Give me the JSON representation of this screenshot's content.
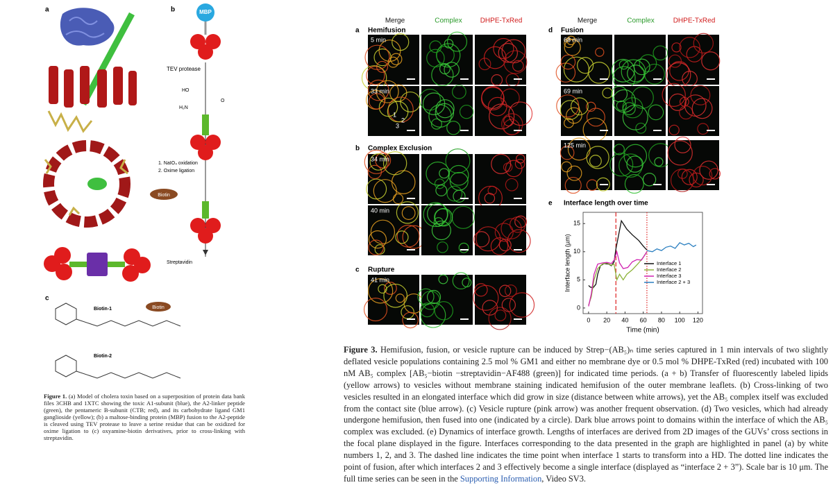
{
  "figure1": {
    "panel_labels": [
      "a",
      "b",
      "c"
    ],
    "mbp": "MBP",
    "tev": "TEV protease",
    "chem_ho": "HO",
    "chem_h2n": "H₂N",
    "chem_o": "O",
    "step1": "1. NaIO₄ oxidation",
    "step2": "2. Oxime ligation",
    "biotin_tag": "Biotin",
    "streptavidin": "Streptavidin",
    "biotin1": "Biotin-1",
    "biotin2": "Biotin-2",
    "biotin_tag2": "Biotin",
    "caption_label": "Figure 1.",
    "caption": "(a) Model of cholera toxin based on a superposition of protein data bank files 3CHB and 1XTC showing the toxic A1-subunit (blue), the A2-linker peptide (green), the pentameric B-subunit (CTB; red), and its carbohydrate ligand GM1 ganglioside (yellow); (b) a maltose-binding protein (MBP) fusion to the A2-peptide is cleaved using TEV protease to leave a serine residue that can be oxidized for oxime ligation to (c) oxyamine-biotin derivatives, prior to cross-linking with streptavidin."
  },
  "figure3": {
    "columns_left": [
      "Merge",
      "Complex",
      "DHPE-TxRed"
    ],
    "columns_right": [
      "Merge",
      "Complex",
      "DHPE-TxRed"
    ],
    "panels": [
      {
        "label": "a",
        "title": "Hemifusion",
        "times": [
          "5 min",
          "33 min"
        ]
      },
      {
        "label": "b",
        "title": "Complex Exclusion",
        "times": [
          "34 min",
          "40 min"
        ]
      },
      {
        "label": "c",
        "title": "Rupture",
        "times": [
          "41 min"
        ]
      },
      {
        "label": "d",
        "title": "Fusion",
        "times": [
          "68 min",
          "69 min",
          "125 min"
        ]
      }
    ],
    "interface_numbers": [
      "1",
      "2",
      "3"
    ],
    "caption_label": "Figure 3.",
    "caption": "Hemifusion, fusion, or vesicle rupture can be induced by Strep−(AB₅)ₙ time series captured in 1 min intervals of two slightly deflated vesicle populations containing 2.5 mol % GM1 and either no membrane dye or 0.5 mol % DHPE-TxRed (red) incubated with 100 nM AB₅ complex [AB₅−biotin −streptavidin−AF488 (green)] for indicated time periods. (a + b) Transfer of fluorescently labeled lipids (yellow arrows) to vesicles without membrane staining indicated hemifusion of the outer membrane leaflets. (b) Cross-linking of two vesicles resulted in an elongated interface which did grow in size (distance between white arrows), yet the AB₅ complex itself was excluded from the contact site (blue arrow). (c) Vesicle rupture (pink arrow) was another frequent observation. (d) Two vesicles, which had already undergone hemifusion, then fused into one (indicated by a circle). Dark blue arrows point to domains within the interface of which the AB₅ complex was excluded. (e) Dynamics of interface growth. Lengths of interfaces are derived from 2D images of the GUVs’ cross sections in the focal plane displayed in the figure. Interfaces corresponding to the data presented in the graph are highlighted in panel (a) by white numbers 1, 2, and 3. The dashed line indicates the time point when interface 1 starts to transform into a HD. The dotted line indicates the point of fusion, after which interfaces 2 and 3 effectively become a single interface (displayed as “interface 2 + 3”). Scale bar is 10 μm. The full time series can be seen in the ",
    "caption_link": "Supporting Information",
    "caption_end": ", Video SV3."
  },
  "chart_data": {
    "type": "line",
    "panel_label": "e",
    "title": "Interface length over time",
    "x_label": "Time (min)",
    "y_label": "Interface length (µm)",
    "xlim": [
      -6,
      125
    ],
    "ylim": [
      -1,
      17
    ],
    "xticks": [
      0,
      20,
      40,
      60,
      80,
      100,
      120
    ],
    "yticks": [
      0,
      5,
      10,
      15
    ],
    "legend": "lower right",
    "vlines": [
      {
        "x": 30,
        "style": "dashed",
        "color": "#e03030"
      },
      {
        "x": 64,
        "style": "dotted",
        "color": "#e03030"
      }
    ],
    "series": [
      {
        "name": "Interface 1",
        "color": "#111111",
        "x": [
          0,
          2,
          5,
          8,
          10,
          13,
          17,
          22,
          25,
          28,
          30,
          33,
          36,
          38,
          42,
          48,
          55,
          60,
          64
        ],
        "values": [
          4,
          3.7,
          3.6,
          4.2,
          6,
          7.5,
          7.9,
          7.8,
          7.5,
          8.2,
          10.5,
          13,
          15.5,
          15,
          14,
          13,
          12,
          11,
          10.3
        ]
      },
      {
        "name": "Interface 2",
        "color": "#8db33a",
        "x": [
          0,
          3,
          6,
          10,
          15,
          20,
          25,
          28,
          31,
          34,
          38,
          42,
          48,
          55,
          60,
          64
        ],
        "values": [
          0.5,
          2,
          5,
          7,
          7.8,
          8,
          7.6,
          7.8,
          5,
          6,
          5,
          6,
          6.8,
          8,
          9,
          10
        ]
      },
      {
        "name": "Interface 3",
        "color": "#d020b0",
        "x": [
          0,
          3,
          6,
          10,
          15,
          20,
          25,
          28,
          31,
          34,
          38,
          43,
          48,
          53,
          58,
          64
        ],
        "values": [
          0.3,
          2.5,
          6,
          7.8,
          8,
          8.1,
          7.9,
          8.5,
          10,
          8,
          7,
          7.2,
          8.2,
          8.6,
          8.5,
          10
        ]
      },
      {
        "name": "Interface 2 + 3",
        "color": "#2a7fc0",
        "x": [
          64,
          70,
          75,
          80,
          85,
          90,
          95,
          100,
          105,
          110,
          115,
          118
        ],
        "values": [
          10.2,
          10,
          10.5,
          10.2,
          10.8,
          11,
          10.6,
          11.6,
          11.2,
          11.5,
          10.9,
          11.2
        ]
      }
    ]
  }
}
